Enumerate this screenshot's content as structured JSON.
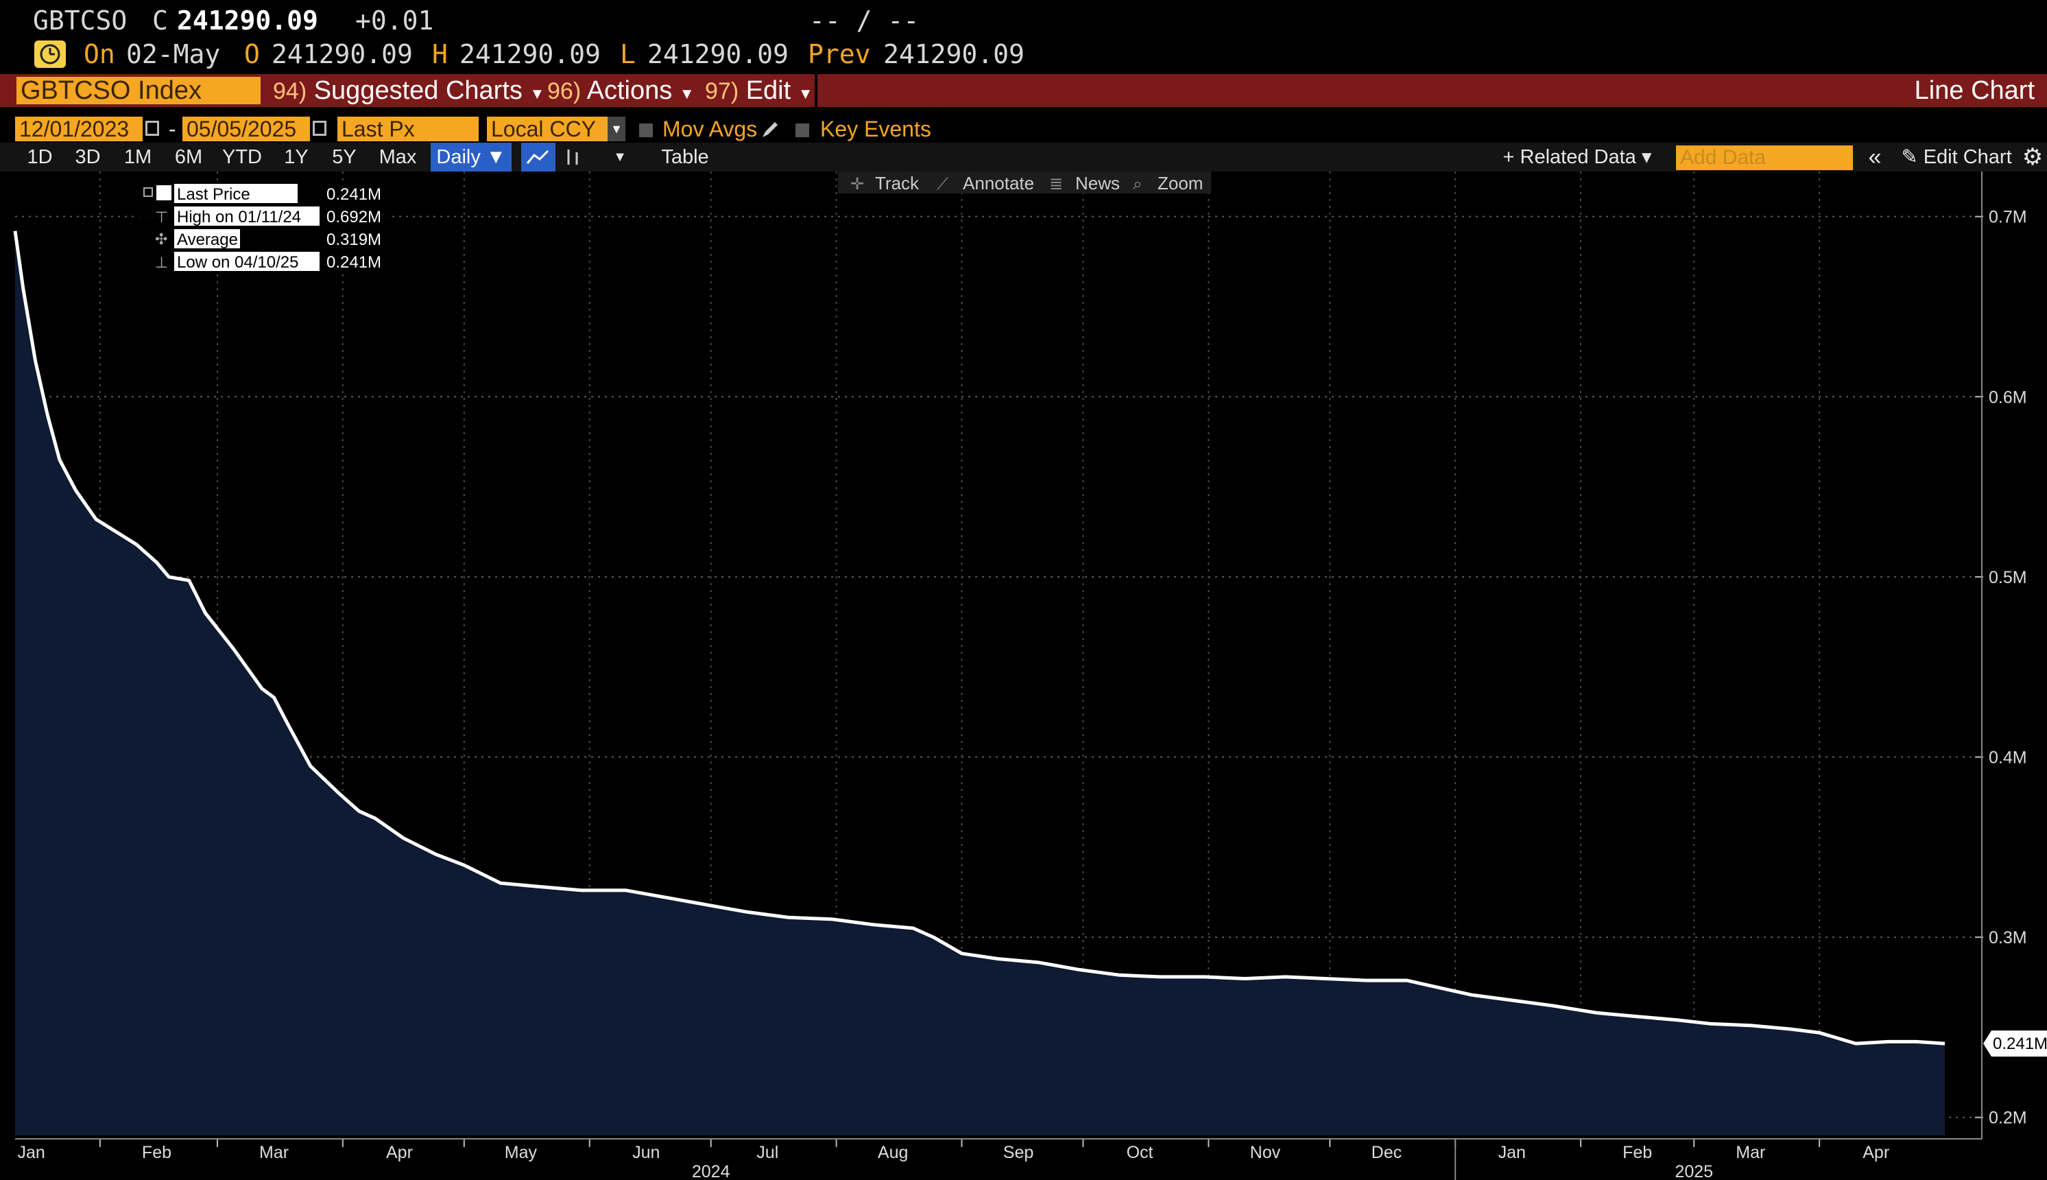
{
  "header": {
    "ticker": "GBTCSO",
    "close_label": "C",
    "close_value": "241290.09",
    "change": "+0.01",
    "bid_ask": "-- / --",
    "on_label": "On",
    "date": "02-May",
    "open_label": "O",
    "open": "241290.09",
    "high_label": "H",
    "high": "241290.09",
    "low_label": "L",
    "low": "241290.09",
    "prev_label": "Prev",
    "prev": "241290.09"
  },
  "menubar": {
    "security": "GBTCSO Index",
    "suggested_num": "94)",
    "suggested": "Suggested Charts",
    "actions_num": "96)",
    "actions": "Actions",
    "edit_num": "97)",
    "edit": "Edit",
    "chart_type": "Line Chart"
  },
  "controls": {
    "start_date": "12/01/2023",
    "dash": "-",
    "end_date": "05/05/2025",
    "field": "Last Px",
    "currency": "Local CCY",
    "mov_avgs": "Mov Avgs",
    "key_events": "Key Events"
  },
  "toolbar": {
    "periods": [
      "1D",
      "3D",
      "1M",
      "6M",
      "YTD",
      "1Y",
      "5Y",
      "Max"
    ],
    "frequency": "Daily ▼",
    "table": "Table",
    "related_data": "+ Related Data ▾",
    "add_data_placeholder": "Add Data",
    "edit_chart": "Edit Chart"
  },
  "chart_tools": {
    "track": "Track",
    "annotate": "Annotate",
    "news": "News",
    "zoom": "Zoom"
  },
  "legend": {
    "last_price_label": "Last Price",
    "last_price_value": "0.241M",
    "high_label": "High on 01/11/24",
    "high_value": "0.692M",
    "average_label": "Average",
    "average_value": "0.319M",
    "low_label": "Low on 04/10/25",
    "low_value": "0.241M"
  },
  "chart_data": {
    "type": "area",
    "title": "",
    "xlabel": "",
    "ylabel": "",
    "x_range": [
      "2024-01-11",
      "2025-05-02"
    ],
    "ylim": [
      0.19,
      0.725
    ],
    "y_ticks": [
      0.2,
      0.3,
      0.4,
      0.5,
      0.6,
      0.7
    ],
    "y_tick_labels": [
      "0.2M",
      "0.3M",
      "0.4M",
      "0.5M",
      "0.6M",
      "0.7M"
    ],
    "x_month_ticks": [
      {
        "date": "2024-01-15",
        "label": "Jan"
      },
      {
        "date": "2024-02-15",
        "label": "Feb"
      },
      {
        "date": "2024-03-15",
        "label": "Mar"
      },
      {
        "date": "2024-04-15",
        "label": "Apr"
      },
      {
        "date": "2024-05-15",
        "label": "May"
      },
      {
        "date": "2024-06-15",
        "label": "Jun"
      },
      {
        "date": "2024-07-15",
        "label": "Jul"
      },
      {
        "date": "2024-08-15",
        "label": "Aug"
      },
      {
        "date": "2024-09-15",
        "label": "Sep"
      },
      {
        "date": "2024-10-15",
        "label": "Oct"
      },
      {
        "date": "2024-11-15",
        "label": "Nov"
      },
      {
        "date": "2024-12-15",
        "label": "Dec"
      },
      {
        "date": "2025-01-15",
        "label": "Jan"
      },
      {
        "date": "2025-02-15",
        "label": "Feb"
      },
      {
        "date": "2025-03-15",
        "label": "Mar"
      },
      {
        "date": "2025-04-15",
        "label": "Apr"
      }
    ],
    "year_labels": [
      {
        "date": "2024-07-01",
        "label": "2024"
      },
      {
        "date": "2025-03-01",
        "label": "2025"
      }
    ],
    "year_separator": "2025-01-01",
    "last_value_label": "0.241M",
    "last_value": 0.241,
    "grid": true,
    "line_color": "#ffffff",
    "fill_color": "#0f1a33",
    "series": [
      {
        "points": [
          [
            "2024-01-11",
            0.692
          ],
          [
            "2024-01-13",
            0.66
          ],
          [
            "2024-01-16",
            0.62
          ],
          [
            "2024-01-19",
            0.59
          ],
          [
            "2024-01-22",
            0.565
          ],
          [
            "2024-01-26",
            0.548
          ],
          [
            "2024-01-31",
            0.532
          ],
          [
            "2024-02-05",
            0.525
          ],
          [
            "2024-02-10",
            0.518
          ],
          [
            "2024-02-15",
            0.508
          ],
          [
            "2024-02-18",
            0.5
          ],
          [
            "2024-02-23",
            0.498
          ],
          [
            "2024-02-27",
            0.48
          ],
          [
            "2024-03-05",
            0.46
          ],
          [
            "2024-03-12",
            0.438
          ],
          [
            "2024-03-15",
            0.433
          ],
          [
            "2024-03-18",
            0.42
          ],
          [
            "2024-03-24",
            0.395
          ],
          [
            "2024-03-31",
            0.38
          ],
          [
            "2024-04-05",
            0.37
          ],
          [
            "2024-04-09",
            0.366
          ],
          [
            "2024-04-16",
            0.355
          ],
          [
            "2024-04-24",
            0.346
          ],
          [
            "2024-05-01",
            0.34
          ],
          [
            "2024-05-10",
            0.33
          ],
          [
            "2024-05-20",
            0.328
          ],
          [
            "2024-05-30",
            0.326
          ],
          [
            "2024-06-10",
            0.326
          ],
          [
            "2024-06-20",
            0.322
          ],
          [
            "2024-06-30",
            0.318
          ],
          [
            "2024-07-10",
            0.314
          ],
          [
            "2024-07-20",
            0.311
          ],
          [
            "2024-07-31",
            0.31
          ],
          [
            "2024-08-10",
            0.307
          ],
          [
            "2024-08-20",
            0.305
          ],
          [
            "2024-08-25",
            0.3
          ],
          [
            "2024-09-01",
            0.291
          ],
          [
            "2024-09-10",
            0.288
          ],
          [
            "2024-09-20",
            0.286
          ],
          [
            "2024-09-30",
            0.282
          ],
          [
            "2024-10-10",
            0.279
          ],
          [
            "2024-10-20",
            0.278
          ],
          [
            "2024-10-31",
            0.278
          ],
          [
            "2024-11-10",
            0.277
          ],
          [
            "2024-11-20",
            0.278
          ],
          [
            "2024-11-30",
            0.277
          ],
          [
            "2024-12-10",
            0.276
          ],
          [
            "2024-12-20",
            0.276
          ],
          [
            "2024-12-28",
            0.272
          ],
          [
            "2025-01-05",
            0.268
          ],
          [
            "2025-01-15",
            0.265
          ],
          [
            "2025-01-25",
            0.262
          ],
          [
            "2025-02-05",
            0.258
          ],
          [
            "2025-02-15",
            0.256
          ],
          [
            "2025-02-25",
            0.254
          ],
          [
            "2025-03-05",
            0.252
          ],
          [
            "2025-03-15",
            0.251
          ],
          [
            "2025-03-25",
            0.249
          ],
          [
            "2025-04-01",
            0.247
          ],
          [
            "2025-04-10",
            0.241
          ],
          [
            "2025-04-18",
            0.242
          ],
          [
            "2025-04-25",
            0.242
          ],
          [
            "2025-05-02",
            0.241
          ]
        ]
      }
    ]
  }
}
